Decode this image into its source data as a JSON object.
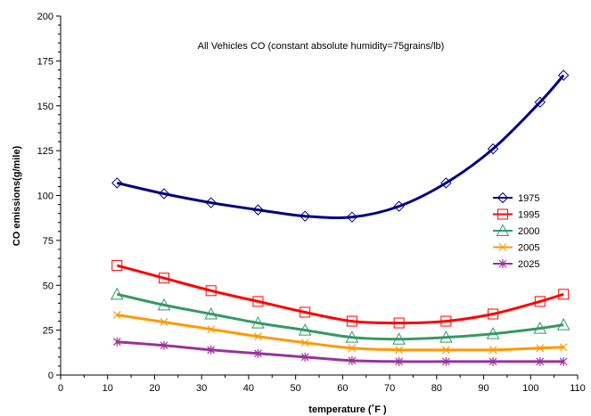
{
  "chart_data": {
    "type": "line",
    "title": "All Vehicles CO  (constant absolute humidity=75grains/lb)",
    "xlabel": "temperature (˚F )",
    "ylabel": "CO emissions(g/mile)",
    "xlim": [
      0,
      110
    ],
    "ylim": [
      0,
      200
    ],
    "xticks": [
      0,
      10,
      20,
      30,
      40,
      50,
      60,
      70,
      80,
      90,
      100,
      110
    ],
    "yticks": [
      0,
      25,
      50,
      75,
      100,
      125,
      150,
      175,
      200
    ],
    "x": [
      12,
      22,
      32,
      42,
      52,
      62,
      72,
      82,
      92,
      102,
      107
    ],
    "legend_position": "right",
    "grid": false,
    "series": [
      {
        "name": "1975",
        "color": "#000080",
        "marker": "diamond",
        "values": [
          107,
          101,
          96,
          92,
          88.5,
          88,
          94,
          107,
          126,
          152,
          167
        ]
      },
      {
        "name": "1995",
        "color": "#FF0000",
        "marker": "square",
        "values": [
          61,
          54,
          47,
          41,
          35,
          30,
          29,
          30,
          34,
          41,
          45
        ]
      },
      {
        "name": "2000",
        "color": "#339966",
        "marker": "triangle",
        "values": [
          45,
          39,
          34,
          29,
          25,
          21,
          20,
          21,
          23,
          26,
          28
        ]
      },
      {
        "name": "2005",
        "color": "#FF9900",
        "marker": "x",
        "values": [
          33.5,
          29.5,
          25.5,
          21.5,
          18,
          15,
          14,
          14,
          14,
          15,
          15.5
        ]
      },
      {
        "name": "2025",
        "color": "#993399",
        "marker": "asterisk",
        "values": [
          18.5,
          16.5,
          14,
          12,
          10,
          8,
          7.5,
          7.5,
          7.5,
          7.5,
          7.5
        ]
      }
    ]
  }
}
